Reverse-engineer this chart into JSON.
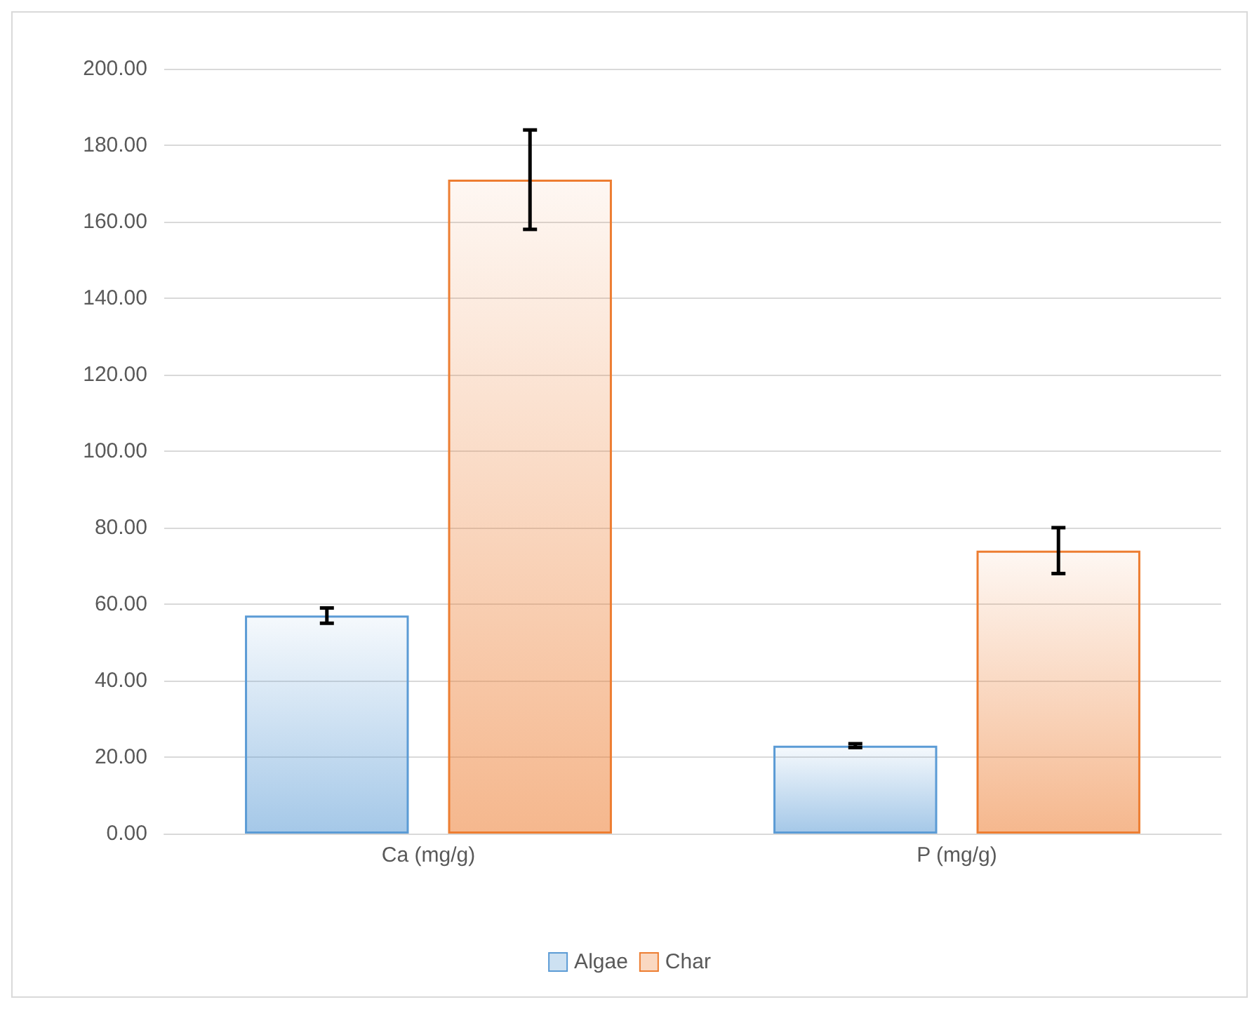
{
  "chart_data": {
    "type": "bar",
    "categories": [
      "Ca (mg/g)",
      "P (mg/g)"
    ],
    "series": [
      {
        "name": "Algae",
        "color": "#5b9bd5",
        "values": [
          57,
          23
        ],
        "errors": [
          2,
          0.5
        ]
      },
      {
        "name": "Char",
        "color": "#ed7d31",
        "values": [
          171,
          74
        ],
        "errors": [
          13,
          6
        ]
      }
    ],
    "ylim": [
      0,
      200
    ],
    "yticks": [
      {
        "value": 0,
        "label": "0.00"
      },
      {
        "value": 20,
        "label": "20.00"
      },
      {
        "value": 40,
        "label": "40.00"
      },
      {
        "value": 60,
        "label": "60.00"
      },
      {
        "value": 80,
        "label": "80.00"
      },
      {
        "value": 100,
        "label": "100.00"
      },
      {
        "value": 120,
        "label": "120.00"
      },
      {
        "value": 140,
        "label": "140.00"
      },
      {
        "value": 160,
        "label": "160.00"
      },
      {
        "value": 180,
        "label": "180.00"
      },
      {
        "value": 200,
        "label": "200.00"
      }
    ],
    "grid": "y",
    "legend": "bottom"
  }
}
